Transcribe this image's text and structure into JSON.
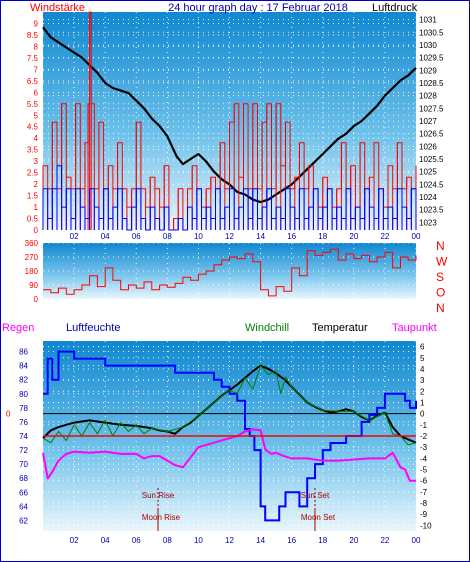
{
  "header": {
    "left_label": "Windstärke",
    "title": "24 hour graph day : 17 Februar 2018",
    "right_label": "Luftdruck"
  },
  "colors": {
    "wind_speed": "#ff0000",
    "wind_gust": "#0000ff",
    "pressure": "#000000",
    "direction": "#ff0000",
    "humidity": "#0000ff",
    "windchill": "#008000",
    "temperature": "#000000",
    "dewpoint": "#ff00ff",
    "rain": "#ff0000",
    "text_blue": "#0000aa",
    "annotation": "#aa0000"
  },
  "time_ticks": [
    "02",
    "04",
    "06",
    "08",
    "10",
    "12",
    "14",
    "16",
    "18",
    "20",
    "22",
    "00"
  ],
  "chart_data": [
    {
      "type": "line",
      "name": "wind-pressure",
      "left_axis": {
        "label": "Windstärke",
        "range": [
          0,
          9.5
        ],
        "ticks": [
          "0",
          "0.5",
          "1",
          "1.5",
          "2",
          "2.5",
          "3",
          "3.5",
          "4",
          "4.5",
          "5",
          "5.5",
          "6",
          "6.5",
          "7",
          "7.5",
          "8",
          "8.5",
          "9"
        ]
      },
      "right_axis": {
        "label": "Luftdruck",
        "range": [
          1022.7,
          1031.3
        ],
        "ticks": [
          "1023",
          "1023.5",
          "1024",
          "1024.5",
          "1025",
          "1025.5",
          "1026",
          "1026.5",
          "1027",
          "1027.5",
          "1028",
          "1028.5",
          "1029",
          "1029.5",
          "1030",
          "1030.5",
          "1031"
        ]
      },
      "series": [
        {
          "role": "pressure",
          "axis": "right",
          "x": [
            0,
            0.5,
            1,
            1.5,
            2,
            2.5,
            3,
            3.5,
            4,
            4.5,
            5,
            5.5,
            6,
            6.5,
            7,
            7.5,
            8,
            8.3,
            8.6,
            9,
            9.5,
            10,
            10.5,
            11,
            11.5,
            12,
            12.5,
            13,
            13.5,
            14,
            14.5,
            15,
            15.5,
            16,
            16.5,
            17,
            17.5,
            18,
            18.5,
            19,
            19.5,
            20,
            20.5,
            21,
            21.5,
            22,
            22.5,
            23,
            23.5,
            24
          ],
          "y": [
            1030.7,
            1030.3,
            1030.1,
            1029.9,
            1029.7,
            1029.5,
            1029.2,
            1028.9,
            1028.5,
            1028.3,
            1028.2,
            1028.1,
            1027.8,
            1027.5,
            1027.1,
            1026.8,
            1026.4,
            1026.0,
            1025.6,
            1025.3,
            1025.5,
            1025.7,
            1025.4,
            1025.0,
            1024.7,
            1024.5,
            1024.2,
            1024.1,
            1023.9,
            1023.8,
            1023.9,
            1024.1,
            1024.3,
            1024.5,
            1024.8,
            1025.1,
            1025.4,
            1025.7,
            1026.0,
            1026.3,
            1026.5,
            1026.8,
            1027.0,
            1027.3,
            1027.6,
            1028.0,
            1028.3,
            1028.6,
            1028.8,
            1029.1
          ]
        },
        {
          "role": "wind_speed",
          "axis": "left",
          "x": [
            0.0,
            0.3,
            0.6,
            0.9,
            1.2,
            1.5,
            1.8,
            2.1,
            2.4,
            2.7,
            2.9,
            3.0,
            3.1,
            3.3,
            3.6,
            3.9,
            4.2,
            4.5,
            4.8,
            5.1,
            5.4,
            5.7,
            6.0,
            6.3,
            6.6,
            6.9,
            7.2,
            7.5,
            7.8,
            8.1,
            8.4,
            8.7,
            9.0,
            9.3,
            9.6,
            9.9,
            10.2,
            10.5,
            10.8,
            11.1,
            11.4,
            11.7,
            12.0,
            12.3,
            12.6,
            12.9,
            13.2,
            13.5,
            13.8,
            14.1,
            14.4,
            14.7,
            15.0,
            15.3,
            15.6,
            15.9,
            16.2,
            16.5,
            16.8,
            17.1,
            17.4,
            17.7,
            18.0,
            18.3,
            18.6,
            18.9,
            19.2,
            19.5,
            19.8,
            20.1,
            20.4,
            20.7,
            21.0,
            21.3,
            21.6,
            21.9,
            22.2,
            22.5,
            22.8,
            23.1,
            23.4,
            23.7,
            24.0
          ],
          "y": [
            2.8,
            1.8,
            4.7,
            1.8,
            5.5,
            2.3,
            1.8,
            5.5,
            1.8,
            3.8,
            5.5,
            9.5,
            5.5,
            1.8,
            4.7,
            1.8,
            2.8,
            1.8,
            3.8,
            1.8,
            1.0,
            1.8,
            4.7,
            1.8,
            1.0,
            2.3,
            1.8,
            1.0,
            2.8,
            0.0,
            0.5,
            1.8,
            0.0,
            1.8,
            2.8,
            1.8,
            1.0,
            1.8,
            2.3,
            1.8,
            3.8,
            1.8,
            4.7,
            5.5,
            2.3,
            5.5,
            1.8,
            5.5,
            1.8,
            4.7,
            5.5,
            1.8,
            5.5,
            2.8,
            4.7,
            1.8,
            2.3,
            3.8,
            1.8,
            2.8,
            1.8,
            1.0,
            2.3,
            1.8,
            1.0,
            1.8,
            3.8,
            1.8,
            2.8,
            1.0,
            3.8,
            1.8,
            2.3,
            3.8,
            1.8,
            1.0,
            2.8,
            1.8,
            3.8,
            1.8,
            2.3,
            1.8,
            2.8
          ]
        },
        {
          "role": "wind_gust",
          "axis": "left",
          "x": [
            0.0,
            0.3,
            0.6,
            0.9,
            1.2,
            1.5,
            1.8,
            2.1,
            2.4,
            2.7,
            3.0,
            3.3,
            3.6,
            3.9,
            4.2,
            4.5,
            4.8,
            5.1,
            5.4,
            5.7,
            6.0,
            6.3,
            6.6,
            6.9,
            7.2,
            7.5,
            7.8,
            8.1,
            8.4,
            8.7,
            9.0,
            9.3,
            9.6,
            9.9,
            10.2,
            10.5,
            10.8,
            11.1,
            11.4,
            11.7,
            12.0,
            12.3,
            12.6,
            12.9,
            13.2,
            13.5,
            13.8,
            14.1,
            14.4,
            14.7,
            15.0,
            15.3,
            15.6,
            15.9,
            16.2,
            16.5,
            16.8,
            17.1,
            17.4,
            17.7,
            18.0,
            18.3,
            18.6,
            18.9,
            19.2,
            19.5,
            19.8,
            20.1,
            20.4,
            20.7,
            21.0,
            21.3,
            21.6,
            21.9,
            22.2,
            22.5,
            22.8,
            23.1,
            23.4,
            23.7,
            24.0
          ],
          "y": [
            1.8,
            0.5,
            1.8,
            2.8,
            1.0,
            1.8,
            0.5,
            1.8,
            1.0,
            0.5,
            1.8,
            1.0,
            0.5,
            1.8,
            0.5,
            1.0,
            1.8,
            0.5,
            0.0,
            1.0,
            1.8,
            0.5,
            0.0,
            1.0,
            0.5,
            0.0,
            1.0,
            0.0,
            0.0,
            0.5,
            0.0,
            1.0,
            0.5,
            1.8,
            0.5,
            1.0,
            0.5,
            1.8,
            0.5,
            1.0,
            1.8,
            0.5,
            1.0,
            1.8,
            0.5,
            1.8,
            0.5,
            1.0,
            1.8,
            0.5,
            1.0,
            0.5,
            1.8,
            1.0,
            0.5,
            1.8,
            0.5,
            1.0,
            1.8,
            0.5,
            1.0,
            1.8,
            0.5,
            1.0,
            0.5,
            1.8,
            0.5,
            1.0,
            0.5,
            1.8,
            1.0,
            0.5,
            1.8,
            0.5,
            1.0,
            0.5,
            1.8,
            1.0,
            0.5,
            1.8,
            1.0
          ]
        }
      ]
    },
    {
      "type": "line",
      "name": "wind-direction",
      "left_axis": {
        "range": [
          0,
          360
        ],
        "ticks": [
          "0",
          "90",
          "180",
          "270",
          "360"
        ]
      },
      "right_axis": {
        "labels": [
          "N",
          "W",
          "S",
          "O",
          "N"
        ]
      },
      "series": [
        {
          "role": "direction",
          "x": [
            0,
            0.5,
            1,
            1.5,
            2,
            2.5,
            3,
            3.5,
            4,
            4.5,
            5,
            5.5,
            6,
            6.5,
            7,
            7.5,
            8,
            8.5,
            9,
            9.5,
            10,
            10.5,
            11,
            11.5,
            12,
            12.5,
            13,
            13.5,
            14,
            14.5,
            15,
            15.5,
            16,
            16.5,
            17,
            17.5,
            18,
            18.5,
            19,
            19.5,
            20,
            20.5,
            21,
            21.5,
            22,
            22.5,
            23,
            23.5,
            24
          ],
          "y": [
            60,
            40,
            70,
            30,
            60,
            90,
            150,
            80,
            200,
            120,
            60,
            90,
            70,
            110,
            60,
            90,
            75,
            100,
            140,
            120,
            160,
            180,
            220,
            250,
            270,
            260,
            290,
            240,
            60,
            20,
            80,
            50,
            200,
            150,
            310,
            280,
            300,
            320,
            250,
            290,
            260,
            280,
            240,
            270,
            300,
            200,
            270,
            250,
            280
          ]
        }
      ]
    },
    {
      "type": "line",
      "name": "humidity-temperature",
      "labels": {
        "rain": "Regen",
        "humidity": "Luftfeuchte",
        "windchill": "Windchill",
        "temperature": "Temperatur",
        "dewpoint": "Taupunkt"
      },
      "left_axis": {
        "label": "Luftfeuchte",
        "range": [
          60.5,
          87.5
        ],
        "ticks": [
          "62",
          "64",
          "66",
          "68",
          "70",
          "72",
          "74",
          "76",
          "78",
          "80",
          "82",
          "84",
          "86"
        ]
      },
      "right_axis": {
        "label": "Temperatur",
        "range": [
          -10.5,
          6.5
        ],
        "ticks": [
          "-10",
          "-9",
          "-8",
          "-7",
          "-6",
          "-5",
          "-4",
          "-3",
          "-2",
          "-1",
          "0",
          "1",
          "2",
          "3",
          "4",
          "5",
          "6"
        ]
      },
      "rain_axis": {
        "ticks": [
          "0"
        ]
      },
      "annotations": [
        {
          "label": "Sun Rise",
          "x": 7.4,
          "level": "upper"
        },
        {
          "label": "Moon Rise",
          "x": 7.4,
          "level": "lower"
        },
        {
          "label": "Sun Set",
          "x": 17.5,
          "level": "upper"
        },
        {
          "label": "Moon Set",
          "x": 17.5,
          "level": "lower"
        }
      ],
      "series": [
        {
          "role": "humidity",
          "axis": "left",
          "x": [
            0,
            0.3,
            0.6,
            1,
            1.5,
            2,
            2.5,
            3,
            3.5,
            4,
            5,
            6,
            7,
            8,
            8.5,
            9,
            10,
            11,
            11.5,
            12,
            12.5,
            13,
            13.3,
            13.6,
            14,
            14.3,
            14.8,
            15.2,
            15.6,
            16,
            16.5,
            16.8,
            17,
            17.5,
            18,
            18.5,
            19,
            19.5,
            20,
            20.5,
            21,
            21.5,
            22,
            22.5,
            23,
            23.3,
            23.6,
            24
          ],
          "y": [
            80,
            85,
            82,
            86,
            86,
            85,
            85,
            85,
            85,
            84,
            84,
            84,
            84,
            84,
            83,
            83,
            83,
            82,
            81,
            80,
            79,
            75,
            74,
            72,
            64,
            62,
            62,
            64,
            66,
            66,
            64,
            64,
            68,
            70,
            72,
            73,
            73,
            74,
            74,
            76,
            77,
            78,
            80,
            80,
            80,
            79,
            78,
            79
          ]
        },
        {
          "role": "temperature",
          "axis": "right",
          "x": [
            0,
            0.5,
            1,
            2,
            3,
            4,
            5,
            6,
            7,
            7.5,
            8,
            8.5,
            9,
            9.5,
            10,
            10.5,
            11,
            11.5,
            12,
            12.5,
            13,
            13.5,
            14,
            14.5,
            15,
            15.5,
            16,
            16.5,
            17,
            17.5,
            18,
            18.5,
            19,
            19.5,
            20,
            20.5,
            21,
            21.5,
            22,
            22.5,
            23,
            23.5,
            24
          ],
          "y": [
            -2.2,
            -1.5,
            -1.2,
            -0.8,
            -0.6,
            -0.8,
            -1.0,
            -1.1,
            -1.3,
            -1.5,
            -1.6,
            -1.8,
            -1.2,
            -0.8,
            -0.2,
            0.4,
            1.0,
            1.6,
            2.1,
            2.6,
            3.2,
            3.8,
            4.3,
            4.0,
            3.6,
            3.1,
            2.4,
            1.7,
            1.0,
            0.6,
            0.3,
            0.1,
            0.2,
            0.4,
            0.2,
            -0.3,
            -0.6,
            -0.2,
            0.1,
            -1.2,
            -2.0,
            -2.3,
            -2.6
          ]
        },
        {
          "role": "windchill",
          "axis": "right",
          "x": [
            0,
            0.5,
            1,
            1.5,
            2,
            2.5,
            3,
            3.5,
            4,
            4.5,
            5,
            5.5,
            6,
            6.5,
            7,
            8,
            9,
            10,
            11,
            12,
            12.5,
            13,
            13.5,
            14,
            14.5,
            15,
            15.3,
            15.6,
            16,
            16.5,
            17,
            18,
            19,
            20,
            21,
            22,
            22.5,
            23,
            23.5,
            24
          ],
          "y": [
            -2.2,
            -2.6,
            -1.6,
            -2.4,
            -1.0,
            -2.0,
            -0.8,
            -1.8,
            -0.6,
            -2.0,
            -0.8,
            -1.6,
            -1.0,
            -1.8,
            -1.3,
            -1.6,
            -1.2,
            -0.2,
            1.0,
            2.1,
            1.8,
            3.2,
            2.2,
            4.3,
            3.5,
            3.8,
            1.8,
            3.3,
            2.4,
            1.7,
            1.0,
            0.3,
            0.2,
            0.2,
            -0.6,
            0.1,
            -1.8,
            -2.0,
            -2.8,
            -2.6
          ]
        },
        {
          "role": "dewpoint",
          "axis": "right",
          "x": [
            0,
            0.3,
            0.6,
            1,
            1.5,
            2,
            3,
            4,
            5,
            6,
            6.5,
            7,
            7.5,
            8,
            8.5,
            9,
            10,
            11,
            12,
            12.5,
            13,
            13.5,
            14,
            14.3,
            14.7,
            15,
            15.5,
            16,
            17,
            18,
            19,
            20,
            21,
            22,
            22.5,
            23,
            23.3,
            23.6,
            24
          ],
          "y": [
            -3.5,
            -5.8,
            -5.2,
            -4.2,
            -3.6,
            -3.4,
            -3.5,
            -3.4,
            -3.6,
            -3.6,
            -4.0,
            -3.8,
            -3.8,
            -4.2,
            -4.6,
            -4.8,
            -3.0,
            -2.6,
            -2.2,
            -2.0,
            -1.6,
            -1.4,
            -1.5,
            -3.2,
            -3.6,
            -3.5,
            -3.8,
            -4.0,
            -4.0,
            -4.2,
            -4.2,
            -4.1,
            -4.0,
            -4.0,
            -3.5,
            -4.8,
            -5.0,
            -6.0,
            -6.0
          ]
        },
        {
          "role": "rain",
          "axis": "rain",
          "x": [
            0,
            24
          ],
          "y": [
            0,
            0
          ]
        }
      ]
    }
  ]
}
